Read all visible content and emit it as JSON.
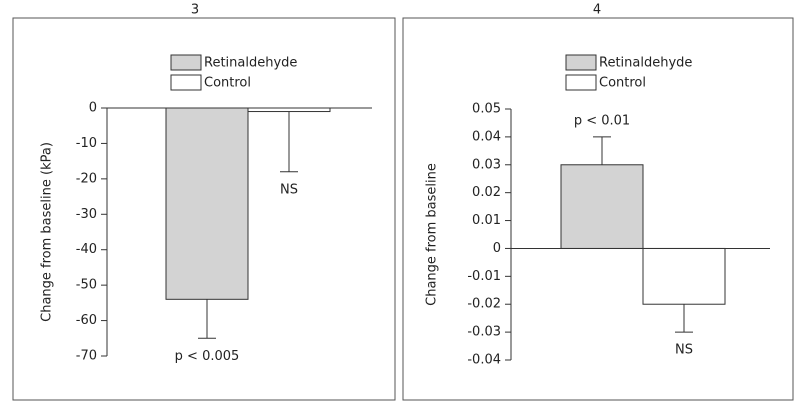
{
  "chart_data": [
    {
      "type": "bar",
      "title": "3",
      "y_label": "Change from baseline (kPa)",
      "ylim": [
        -70,
        0
      ],
      "yticks": [
        0,
        -10,
        -20,
        -30,
        -40,
        -50,
        -60,
        -70
      ],
      "series": [
        {
          "name": "Retinaldehyde",
          "color": "#d3d3d3",
          "values": [
            -54
          ],
          "errors": [
            11
          ]
        },
        {
          "name": "Control",
          "color": "#ffffff",
          "values": [
            -1
          ],
          "errors": [
            17
          ]
        }
      ],
      "annotations": [
        "p < 0.005",
        "NS"
      ]
    },
    {
      "type": "bar",
      "title": "4",
      "y_label": "Change from baseline",
      "ylim": [
        -0.04,
        0.05
      ],
      "yticks": [
        0.05,
        0.04,
        0.03,
        0.02,
        0.01,
        0,
        -0.01,
        -0.02,
        -0.03,
        -0.04
      ],
      "series": [
        {
          "name": "Retinaldehyde",
          "color": "#d3d3d3",
          "values": [
            0.03
          ],
          "errors": [
            0.01
          ]
        },
        {
          "name": "Control",
          "color": "#ffffff",
          "values": [
            -0.02
          ],
          "errors": [
            0.01
          ]
        }
      ],
      "annotations": [
        "p < 0.01",
        "NS"
      ]
    }
  ]
}
